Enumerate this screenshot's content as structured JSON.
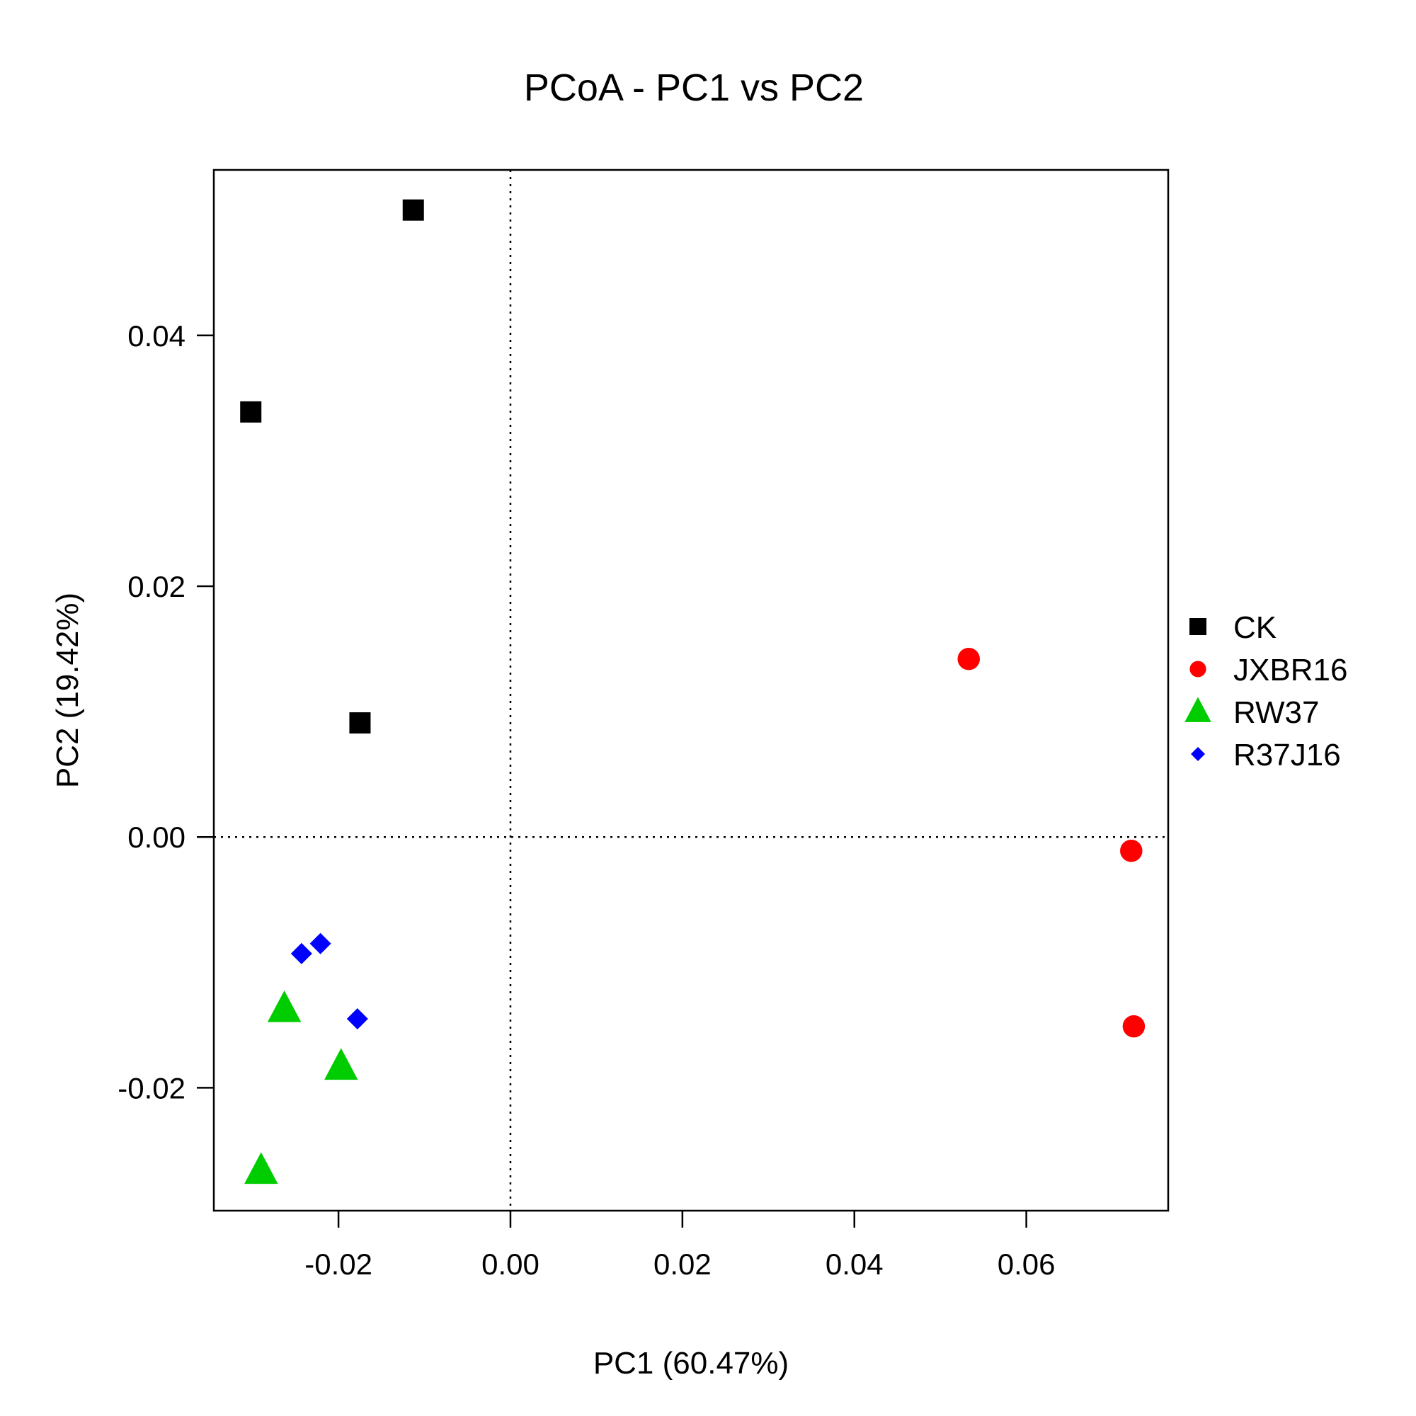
{
  "chart_data": {
    "type": "scatter",
    "title": "PCoA - PC1 vs PC2",
    "xlabel": "PC1 (60.47%)",
    "ylabel": "PC2 (19.42%)",
    "xlim": [
      -0.0345,
      0.0765
    ],
    "ylim": [
      -0.0298,
      0.0532
    ],
    "x_ticks": [
      -0.02,
      0.0,
      0.02,
      0.04,
      0.06
    ],
    "x_tick_labels": [
      "-0.02",
      "0.00",
      "0.02",
      "0.04",
      "0.06"
    ],
    "y_ticks": [
      -0.02,
      0.0,
      0.02,
      0.04
    ],
    "y_tick_labels": [
      "-0.02",
      "0.00",
      "0.02",
      "0.04"
    ],
    "reference_lines": {
      "x": 0,
      "y": 0,
      "style": "dotted"
    },
    "grid": false,
    "legend_position": "right",
    "series": [
      {
        "name": "CK",
        "marker": "square",
        "color": "#000000",
        "points": [
          {
            "x": -0.0113,
            "y": 0.05
          },
          {
            "x": -0.0302,
            "y": 0.0339
          },
          {
            "x": -0.0175,
            "y": 0.0091
          }
        ]
      },
      {
        "name": "JXBR16",
        "marker": "circle",
        "color": "#ff0000",
        "points": [
          {
            "x": 0.0533,
            "y": 0.0142
          },
          {
            "x": 0.0722,
            "y": -0.0011
          },
          {
            "x": 0.0725,
            "y": -0.0151
          }
        ]
      },
      {
        "name": "RW37",
        "marker": "triangle",
        "color": "#00cd00",
        "points": [
          {
            "x": -0.0263,
            "y": -0.0137
          },
          {
            "x": -0.0197,
            "y": -0.0183
          },
          {
            "x": -0.029,
            "y": -0.0266
          }
        ]
      },
      {
        "name": "R37J16",
        "marker": "diamond",
        "color": "#0000ff",
        "points": [
          {
            "x": -0.0243,
            "y": -0.0093
          },
          {
            "x": -0.0221,
            "y": -0.0085
          },
          {
            "x": -0.0178,
            "y": -0.0145
          }
        ]
      }
    ]
  }
}
